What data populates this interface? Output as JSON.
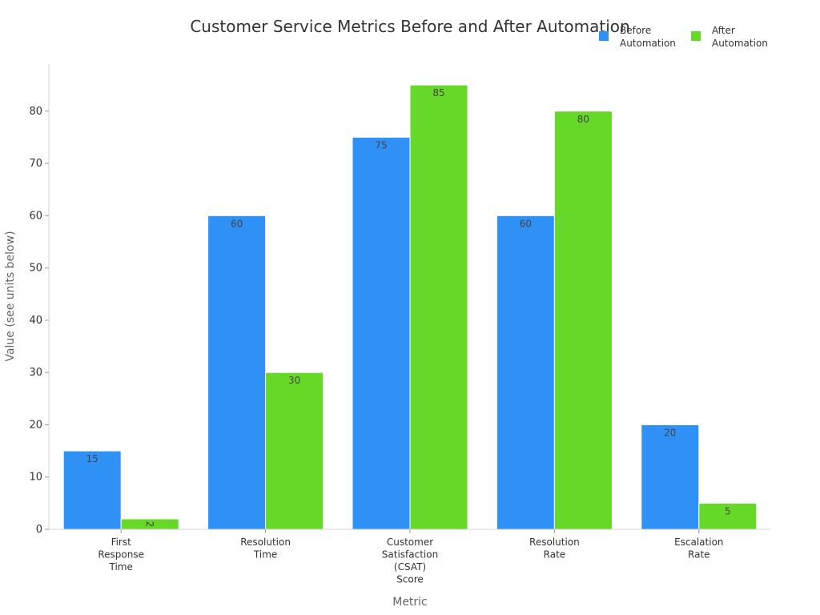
{
  "chart_data": {
    "type": "bar",
    "title": "Customer Service Metrics Before and After Automation",
    "xlabel": "Metric",
    "ylabel": "Value (see units below)",
    "categories": [
      [
        "First",
        "Response",
        "Time"
      ],
      [
        "Resolution",
        "Time"
      ],
      [
        "Customer",
        "Satisfaction",
        "(CSAT)",
        "Score"
      ],
      [
        "Resolution",
        "Rate"
      ],
      [
        "Escalation",
        "Rate"
      ]
    ],
    "series": [
      {
        "name": "Before Automation",
        "legend_lines": [
          "Before",
          "Automation"
        ],
        "color": "#2f91f5",
        "values": [
          15,
          60,
          75,
          60,
          20
        ]
      },
      {
        "name": "After Automation",
        "legend_lines": [
          "After",
          "Automation"
        ],
        "color": "#66d928",
        "values": [
          2,
          30,
          85,
          80,
          5
        ]
      }
    ],
    "ylim": [
      0,
      89
    ],
    "yticks": [
      0,
      10,
      20,
      30,
      40,
      50,
      60,
      70,
      80
    ],
    "grid": false,
    "legend_position": "top-right"
  }
}
